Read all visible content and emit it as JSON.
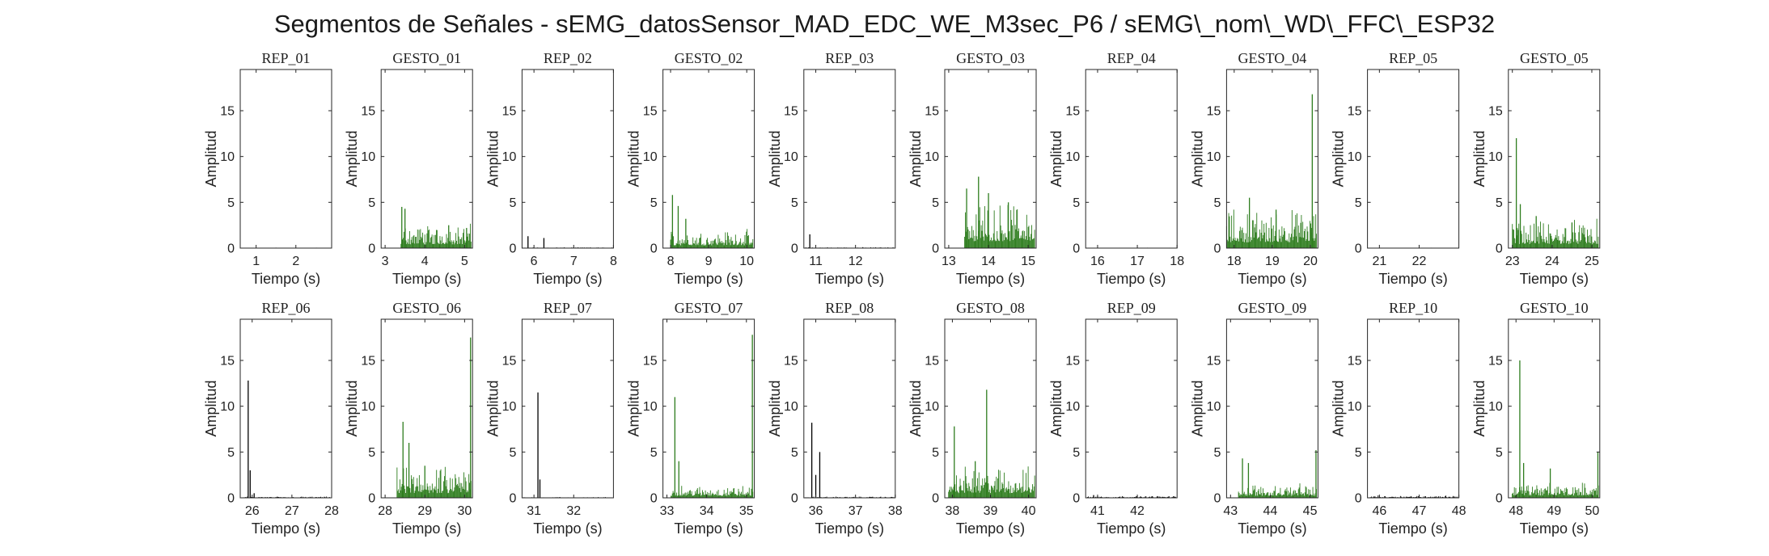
{
  "figure": {
    "title": "Segmentos de Señales - sEMG_datosSensor_MAD_EDC_WE_M3sec_P6 / sEMG\\_nom\\_WD\\_FFC\\_ESP32"
  },
  "colors": {
    "rep": "#000000",
    "gesto": "#2e7d1e",
    "axis": "#262626"
  },
  "chart_data": [
    {
      "type": "bar",
      "title": "REP_01",
      "xlabel": "Tiempo (s)",
      "ylabel": "Amplitud",
      "xlim": [
        0.6,
        2.9
      ],
      "ylim": [
        0,
        19.5
      ],
      "xticks": [
        1,
        2
      ],
      "yticks": [
        0,
        5,
        10,
        15
      ],
      "series": [
        {
          "kind": "rep",
          "spikes": [
            [
              1.5,
              0.05
            ]
          ],
          "noise": 0.03
        }
      ]
    },
    {
      "type": "bar",
      "title": "GESTO_01",
      "xlabel": "Tiempo (s)",
      "ylabel": "Amplitud",
      "xlim": [
        2.9,
        5.2
      ],
      "ylim": [
        0,
        19.5
      ],
      "xticks": [
        3,
        4,
        5
      ],
      "yticks": [
        0,
        5,
        10,
        15
      ],
      "series": [
        {
          "kind": "gesto",
          "spikes": [
            [
              3.42,
              4.5
            ],
            [
              3.5,
              4.3
            ],
            [
              4.6,
              2.5
            ],
            [
              5.05,
              2.2
            ]
          ],
          "noise": 1.6,
          "start": 3.4
        }
      ]
    },
    {
      "type": "bar",
      "title": "REP_02",
      "xlabel": "Tiempo (s)",
      "ylabel": "Amplitud",
      "xlim": [
        5.7,
        8.0
      ],
      "ylim": [
        0,
        19.5
      ],
      "xticks": [
        6,
        7,
        8
      ],
      "yticks": [
        0,
        5,
        10,
        15
      ],
      "series": [
        {
          "kind": "rep",
          "spikes": [
            [
              5.85,
              1.3
            ],
            [
              6.25,
              1.1
            ]
          ],
          "noise": 0.05
        }
      ]
    },
    {
      "type": "bar",
      "title": "GESTO_02",
      "xlabel": "Tiempo (s)",
      "ylabel": "Amplitud",
      "xlim": [
        7.8,
        10.2
      ],
      "ylim": [
        0,
        19.5
      ],
      "xticks": [
        8,
        9,
        10
      ],
      "yticks": [
        0,
        5,
        10,
        15
      ],
      "series": [
        {
          "kind": "gesto",
          "spikes": [
            [
              8.05,
              5.8
            ],
            [
              8.2,
              4.6
            ],
            [
              8.4,
              3.2
            ]
          ],
          "noise": 1.2,
          "start": 8.0
        }
      ]
    },
    {
      "type": "bar",
      "title": "REP_03",
      "xlabel": "Tiempo (s)",
      "ylabel": "Amplitud",
      "xlim": [
        10.7,
        13.0
      ],
      "ylim": [
        0,
        19.5
      ],
      "xticks": [
        11,
        12
      ],
      "yticks": [
        0,
        5,
        10,
        15
      ],
      "series": [
        {
          "kind": "rep",
          "spikes": [
            [
              10.85,
              1.5
            ]
          ],
          "noise": 0.06
        }
      ]
    },
    {
      "type": "bar",
      "title": "GESTO_03",
      "xlabel": "Tiempo (s)",
      "ylabel": "Amplitud",
      "xlim": [
        12.9,
        15.2
      ],
      "ylim": [
        0,
        19.5
      ],
      "xticks": [
        13,
        14,
        15
      ],
      "yticks": [
        0,
        5,
        10,
        15
      ],
      "series": [
        {
          "kind": "gesto",
          "spikes": [
            [
              13.45,
              6.5
            ],
            [
              13.75,
              7.8
            ],
            [
              14.0,
              6.0
            ],
            [
              14.5,
              5.0
            ]
          ],
          "noise": 3.0,
          "start": 13.4
        }
      ]
    },
    {
      "type": "bar",
      "title": "REP_04",
      "xlabel": "Tiempo (s)",
      "ylabel": "Amplitud",
      "xlim": [
        15.7,
        18.0
      ],
      "ylim": [
        0,
        19.5
      ],
      "xticks": [
        16,
        17,
        18
      ],
      "yticks": [
        0,
        5,
        10,
        15
      ],
      "series": [
        {
          "kind": "rep",
          "spikes": [],
          "noise": 0.03
        }
      ]
    },
    {
      "type": "bar",
      "title": "GESTO_04",
      "xlabel": "Tiempo (s)",
      "ylabel": "Amplitud",
      "xlim": [
        17.8,
        20.2
      ],
      "ylim": [
        0,
        19.5
      ],
      "xticks": [
        18,
        19,
        20
      ],
      "yticks": [
        0,
        5,
        10,
        15
      ],
      "series": [
        {
          "kind": "gesto",
          "spikes": [
            [
              18.4,
              5.5
            ],
            [
              19.1,
              4.2
            ],
            [
              20.05,
              16.8
            ]
          ],
          "noise": 2.5,
          "start": 17.8
        }
      ]
    },
    {
      "type": "bar",
      "title": "REP_05",
      "xlabel": "Tiempo (s)",
      "ylabel": "Amplitud",
      "xlim": [
        20.7,
        23.0
      ],
      "ylim": [
        0,
        19.5
      ],
      "xticks": [
        21,
        22
      ],
      "yticks": [
        0,
        5,
        10,
        15
      ],
      "series": [
        {
          "kind": "rep",
          "spikes": [],
          "noise": 0.03
        }
      ]
    },
    {
      "type": "bar",
      "title": "GESTO_05",
      "xlabel": "Tiempo (s)",
      "ylabel": "Amplitud",
      "xlim": [
        22.9,
        25.2
      ],
      "ylim": [
        0,
        19.5
      ],
      "xticks": [
        23,
        24,
        25
      ],
      "yticks": [
        0,
        5,
        10,
        15
      ],
      "series": [
        {
          "kind": "gesto",
          "spikes": [
            [
              23.1,
              12.0
            ],
            [
              23.2,
              4.8
            ],
            [
              23.6,
              3.5
            ],
            [
              24.5,
              2.8
            ]
          ],
          "noise": 1.8,
          "start": 23.0
        }
      ]
    },
    {
      "type": "bar",
      "title": "REP_06",
      "xlabel": "Tiempo (s)",
      "ylabel": "Amplitud",
      "xlim": [
        25.7,
        28.0
      ],
      "ylim": [
        0,
        19.5
      ],
      "xticks": [
        26,
        27,
        28
      ],
      "yticks": [
        0,
        5,
        10,
        15
      ],
      "series": [
        {
          "kind": "rep",
          "spikes": [
            [
              25.9,
              12.8
            ],
            [
              25.95,
              3.0
            ],
            [
              26.05,
              0.5
            ]
          ],
          "noise": 0.08
        }
      ]
    },
    {
      "type": "bar",
      "title": "GESTO_06",
      "xlabel": "Tiempo (s)",
      "ylabel": "Amplitud",
      "xlim": [
        27.9,
        30.2
      ],
      "ylim": [
        0,
        19.5
      ],
      "xticks": [
        28,
        29,
        30
      ],
      "yticks": [
        0,
        5,
        10,
        15
      ],
      "series": [
        {
          "kind": "gesto",
          "spikes": [
            [
              28.45,
              8.3
            ],
            [
              28.6,
              6.0
            ],
            [
              29.0,
              3.5
            ],
            [
              30.15,
              17.5
            ]
          ],
          "noise": 2.0,
          "start": 28.3
        }
      ]
    },
    {
      "type": "bar",
      "title": "REP_07",
      "xlabel": "Tiempo (s)",
      "ylabel": "Amplitud",
      "xlim": [
        30.7,
        33.0
      ],
      "ylim": [
        0,
        19.5
      ],
      "xticks": [
        31,
        32
      ],
      "yticks": [
        0,
        5,
        10,
        15
      ],
      "series": [
        {
          "kind": "rep",
          "spikes": [
            [
              31.1,
              11.5
            ],
            [
              31.15,
              2.0
            ]
          ],
          "noise": 0.05
        }
      ]
    },
    {
      "type": "bar",
      "title": "GESTO_07",
      "xlabel": "Tiempo (s)",
      "ylabel": "Amplitud",
      "xlim": [
        32.9,
        35.2
      ],
      "ylim": [
        0,
        19.5
      ],
      "xticks": [
        33,
        34,
        35
      ],
      "yticks": [
        0,
        5,
        10,
        15
      ],
      "series": [
        {
          "kind": "gesto",
          "spikes": [
            [
              33.2,
              11.0
            ],
            [
              33.3,
              4.0
            ],
            [
              35.15,
              17.8
            ]
          ],
          "noise": 0.8,
          "start": 33.1
        }
      ]
    },
    {
      "type": "bar",
      "title": "REP_08",
      "xlabel": "Tiempo (s)",
      "ylabel": "Amplitud",
      "xlim": [
        35.7,
        38.0
      ],
      "ylim": [
        0,
        19.5
      ],
      "xticks": [
        36,
        37,
        38
      ],
      "yticks": [
        0,
        5,
        10,
        15
      ],
      "series": [
        {
          "kind": "rep",
          "spikes": [
            [
              35.9,
              8.2
            ],
            [
              36.0,
              2.5
            ],
            [
              36.1,
              5.0
            ]
          ],
          "noise": 0.08
        }
      ]
    },
    {
      "type": "bar",
      "title": "GESTO_08",
      "xlabel": "Tiempo (s)",
      "ylabel": "Amplitud",
      "xlim": [
        37.8,
        40.2
      ],
      "ylim": [
        0,
        19.5
      ],
      "xticks": [
        38,
        39,
        40
      ],
      "yticks": [
        0,
        5,
        10,
        15
      ],
      "series": [
        {
          "kind": "gesto",
          "spikes": [
            [
              38.05,
              7.8
            ],
            [
              38.9,
              11.8
            ],
            [
              38.6,
              4.0
            ]
          ],
          "noise": 2.0,
          "start": 37.9
        }
      ]
    },
    {
      "type": "bar",
      "title": "REP_09",
      "xlabel": "Tiempo (s)",
      "ylabel": "Amplitud",
      "xlim": [
        40.7,
        43.0
      ],
      "ylim": [
        0,
        19.5
      ],
      "xticks": [
        41,
        42
      ],
      "yticks": [
        0,
        5,
        10,
        15
      ],
      "series": [
        {
          "kind": "rep",
          "spikes": [
            [
              40.9,
              0.3
            ]
          ],
          "noise": 0.12
        }
      ]
    },
    {
      "type": "bar",
      "title": "GESTO_09",
      "xlabel": "Tiempo (s)",
      "ylabel": "Amplitud",
      "xlim": [
        42.9,
        45.2
      ],
      "ylim": [
        0,
        19.5
      ],
      "xticks": [
        43,
        44,
        45
      ],
      "yticks": [
        0,
        5,
        10,
        15
      ],
      "series": [
        {
          "kind": "gesto",
          "spikes": [
            [
              43.3,
              4.3
            ],
            [
              43.45,
              3.8
            ],
            [
              45.15,
              5.2
            ]
          ],
          "noise": 0.9,
          "start": 43.2
        }
      ]
    },
    {
      "type": "bar",
      "title": "REP_10",
      "xlabel": "Tiempo (s)",
      "ylabel": "Amplitud",
      "xlim": [
        45.7,
        48.0
      ],
      "ylim": [
        0,
        19.5
      ],
      "xticks": [
        46,
        47,
        48
      ],
      "yticks": [
        0,
        5,
        10,
        15
      ],
      "series": [
        {
          "kind": "rep",
          "spikes": [],
          "noise": 0.15
        }
      ]
    },
    {
      "type": "bar",
      "title": "GESTO_10",
      "xlabel": "Tiempo (s)",
      "ylabel": "Amplitud",
      "xlim": [
        47.8,
        50.2
      ],
      "ylim": [
        0,
        19.5
      ],
      "xticks": [
        48,
        49,
        50
      ],
      "yticks": [
        0,
        5,
        10,
        15
      ],
      "series": [
        {
          "kind": "gesto",
          "spikes": [
            [
              48.1,
              15.0
            ],
            [
              48.2,
              3.8
            ],
            [
              48.9,
              3.2
            ],
            [
              50.15,
              5.0
            ]
          ],
          "noise": 1.0,
          "start": 47.9
        }
      ]
    }
  ]
}
